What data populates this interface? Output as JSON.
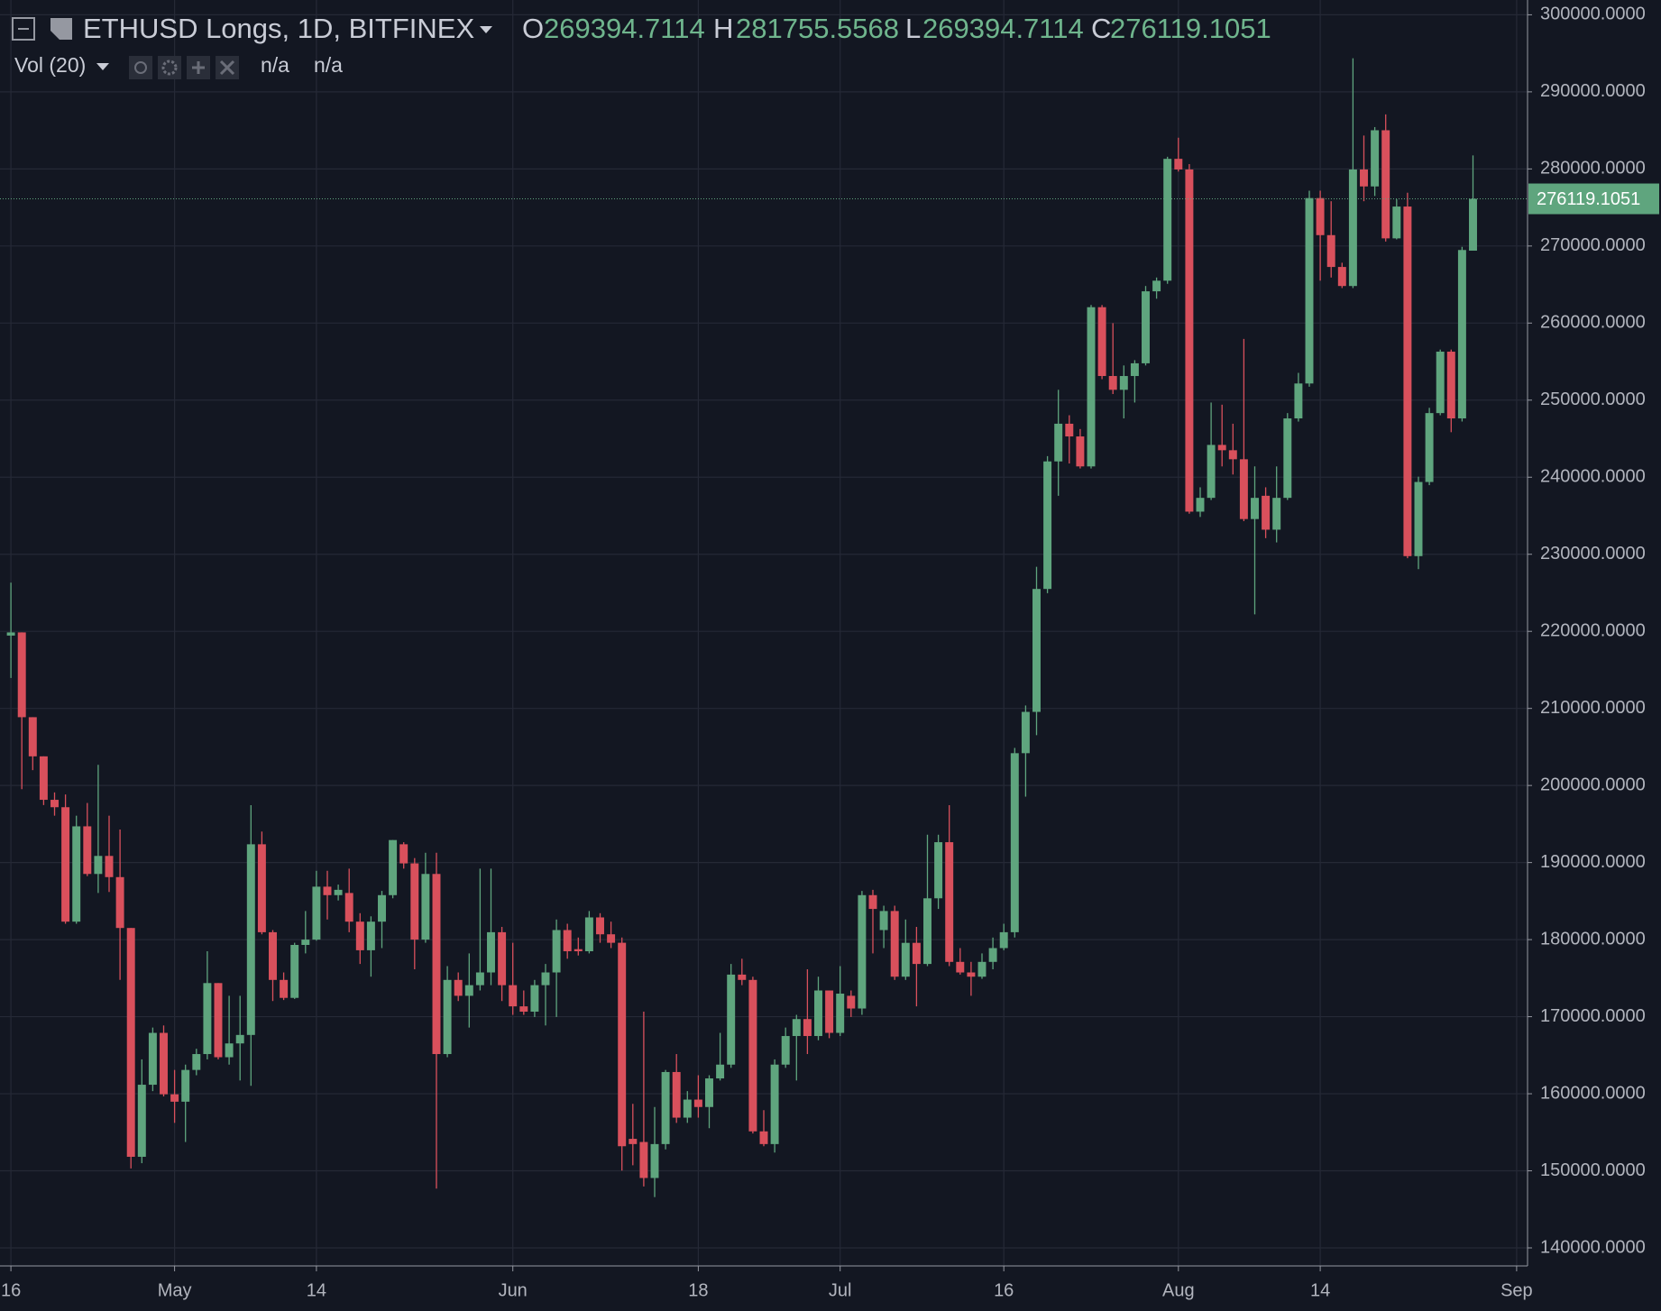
{
  "chart_data": {
    "type": "candlestick",
    "title": "ETHUSD Longs, 1D, BITFINEX",
    "ohlc_labels": [
      "O",
      "H",
      "L",
      "C"
    ],
    "indicator": {
      "label": "Vol (20)",
      "values": [
        "n/a",
        "n/a"
      ]
    },
    "up_color": "#5fa57e",
    "down_color": "#d9505c",
    "grid": true,
    "x": [
      "Apr 16",
      "Apr 17",
      "Apr 18",
      "Apr 19",
      "Apr 20",
      "Apr 21",
      "Apr 22",
      "Apr 23",
      "Apr 24",
      "Apr 25",
      "Apr 26",
      "Apr 27",
      "Apr 28",
      "Apr 29",
      "Apr 30",
      "May 1",
      "May 2",
      "May 3",
      "May 4",
      "May 5",
      "May 6",
      "May 7",
      "May 8",
      "May 9",
      "May 10",
      "May 11",
      "May 12",
      "May 13",
      "May 14",
      "May 15",
      "May 16",
      "May 17",
      "May 18",
      "May 19",
      "May 20",
      "May 21",
      "May 22",
      "May 23",
      "May 24",
      "May 25",
      "May 26",
      "May 27",
      "May 28",
      "May 29",
      "May 30",
      "May 31",
      "Jun 1",
      "Jun 2",
      "Jun 3",
      "Jun 4",
      "Jun 5",
      "Jun 6",
      "Jun 7",
      "Jun 8",
      "Jun 9",
      "Jun 10",
      "Jun 11",
      "Jun 12",
      "Jun 13",
      "Jun 14",
      "Jun 15",
      "Jun 16",
      "Jun 17",
      "Jun 18",
      "Jun 19",
      "Jun 20",
      "Jun 21",
      "Jun 22",
      "Jun 23",
      "Jun 24",
      "Jun 25",
      "Jun 26",
      "Jun 27",
      "Jun 28",
      "Jun 29",
      "Jun 30",
      "Jul 1",
      "Jul 2",
      "Jul 3",
      "Jul 4",
      "Jul 5",
      "Jul 6",
      "Jul 7",
      "Jul 8",
      "Jul 9",
      "Jul 10",
      "Jul 11",
      "Jul 12",
      "Jul 13",
      "Jul 14",
      "Jul 15",
      "Jul 16",
      "Jul 17",
      "Jul 18",
      "Jul 19",
      "Jul 20",
      "Jul 21",
      "Jul 22",
      "Jul 23",
      "Jul 24",
      "Jul 25",
      "Jul 26",
      "Jul 27",
      "Jul 28",
      "Jul 29",
      "Jul 30",
      "Jul 31",
      "Aug 1",
      "Aug 2",
      "Aug 3",
      "Aug 4",
      "Aug 5",
      "Aug 6",
      "Aug 7",
      "Aug 8",
      "Aug 9",
      "Aug 10",
      "Aug 11",
      "Aug 12",
      "Aug 13",
      "Aug 14",
      "Aug 15",
      "Aug 16",
      "Aug 17",
      "Aug 18",
      "Aug 19",
      "Aug 20",
      "Aug 21",
      "Aug 22",
      "Aug 23",
      "Aug 24",
      "Aug 25",
      "Aug 26",
      "Aug 27",
      "Aug 28"
    ],
    "open": [
      219450,
      219860,
      208860,
      203780,
      198140,
      197180,
      182330,
      194700,
      188520,
      190860,
      188110,
      181510,
      151820,
      161170,
      167900,
      159930,
      158970,
      163090,
      165150,
      174360,
      164740,
      166530,
      167630,
      192370,
      180960,
      174770,
      172440,
      179310,
      180000,
      186870,
      185770,
      186050,
      182330,
      178620,
      182330,
      185770,
      192370,
      189890,
      180000,
      188520,
      165150,
      174770,
      172710,
      174090,
      175740,
      180960,
      174090,
      171340,
      170650,
      174090,
      175740,
      181240,
      178760,
      178490,
      182880,
      180690,
      179590,
      154150,
      153740,
      149070,
      153470,
      162820,
      156900,
      159240,
      158280,
      161990,
      163780,
      175460,
      174770,
      155120,
      153470,
      163780,
      167490,
      169690,
      167490,
      173400,
      167900,
      172710,
      171060,
      185770,
      181240,
      183710,
      175190,
      179580,
      176840,
      185360,
      192640,
      177110,
      175740,
      175190,
      177110,
      178900,
      180960,
      204190,
      209550,
      225500,
      242050,
      246940,
      245290,
      241400,
      262060,
      253130,
      251340,
      253130,
      254780,
      264120,
      265500,
      281310,
      279930,
      235530,
      237320,
      244190,
      243500,
      242330,
      234570,
      237590,
      233190,
      237320,
      247630,
      252160,
      276220,
      271410,
      267280,
      264810,
      279930,
      277730,
      285020,
      270990,
      275120,
      229760,
      239380,
      248320,
      256290,
      247630,
      269394.7114
    ],
    "high": [
      226320,
      219860,
      208860,
      203780,
      199100,
      198830,
      196080,
      197730,
      202680,
      196080,
      194290,
      181510,
      164460,
      168590,
      168860,
      163090,
      163780,
      165840,
      178490,
      174360,
      172710,
      172710,
      197450,
      194020,
      181240,
      175740,
      179590,
      183710,
      188930,
      188930,
      187140,
      189210,
      183430,
      183020,
      186320,
      192920,
      192640,
      190580,
      191270,
      191270,
      176560,
      175740,
      178210,
      189210,
      189210,
      181650,
      179590,
      173400,
      174770,
      176840,
      182610,
      182060,
      180270,
      183710,
      183430,
      182330,
      180270,
      158690,
      170650,
      158280,
      163090,
      165150,
      160340,
      162400,
      162400,
      167900,
      176840,
      177520,
      175190,
      157870,
      164460,
      168590,
      170240,
      176150,
      175190,
      173400,
      176560,
      173400,
      186320,
      186460,
      184400,
      184400,
      182610,
      181650,
      193610,
      193610,
      197450,
      178900,
      177110,
      178210,
      180270,
      182060,
      204880,
      210380,
      228380,
      242740,
      251340,
      248040,
      246250,
      262340,
      262340,
      259990,
      254500,
      255190,
      264810,
      265910,
      281580,
      284050,
      280620,
      238690,
      249690,
      249410,
      246940,
      257940,
      241400,
      238690,
      241400,
      248320,
      253540,
      277180,
      277180,
      275810,
      267830,
      294360,
      284330,
      285430,
      287080,
      276080,
      276910,
      240070,
      249000,
      256560,
      256560,
      269900,
      281755.5568
    ],
    "low": [
      213950,
      199520,
      201990,
      197460,
      196080,
      182060,
      182060,
      188240,
      186050,
      186180,
      174770,
      150310,
      150990,
      160340,
      159650,
      156220,
      153740,
      162400,
      164460,
      164460,
      163780,
      161720,
      161030,
      180690,
      172030,
      172160,
      172300,
      178210,
      179860,
      182610,
      185080,
      180960,
      176840,
      175190,
      178900,
      185360,
      189210,
      176150,
      179590,
      147690,
      164740,
      172030,
      168590,
      173400,
      174090,
      172030,
      170240,
      170240,
      169960,
      168860,
      169960,
      177520,
      177940,
      178210,
      179590,
      178900,
      150030,
      150720,
      147970,
      146590,
      152780,
      156220,
      156220,
      156900,
      155530,
      161720,
      163360,
      174090,
      154840,
      153190,
      152370,
      163360,
      161720,
      165150,
      166940,
      167210,
      167490,
      169960,
      170240,
      178210,
      178900,
      174770,
      174770,
      171340,
      176560,
      183980,
      176560,
      175460,
      172710,
      174910,
      176150,
      178620,
      180270,
      198550,
      206530,
      224950,
      237590,
      241780,
      241130,
      241130,
      252720,
      250790,
      247630,
      249690,
      254500,
      263160,
      265090,
      279660,
      235260,
      234840,
      237040,
      241400,
      240350,
      234290,
      222200,
      232090,
      231540,
      237040,
      247220,
      251750,
      265500,
      265910,
      264540,
      264540,
      275810,
      276490,
      270580,
      270860,
      229480,
      228070,
      238970,
      248040,
      245840,
      247220,
      269394.7114
    ],
    "close": [
      219860,
      208860,
      203780,
      198140,
      197180,
      182330,
      194700,
      188520,
      190860,
      188110,
      181510,
      151820,
      161170,
      167900,
      159930,
      158970,
      163090,
      165150,
      174360,
      164740,
      166530,
      167630,
      192370,
      180960,
      174770,
      172440,
      179310,
      180000,
      186870,
      185770,
      186460,
      182330,
      178620,
      182330,
      185770,
      192920,
      189890,
      180000,
      188520,
      165150,
      174770,
      172710,
      174090,
      175740,
      180960,
      174090,
      171340,
      170650,
      174090,
      175740,
      181240,
      178490,
      178490,
      182880,
      180690,
      179590,
      153190,
      153470,
      149070,
      153470,
      162820,
      156900,
      159240,
      158280,
      161990,
      163780,
      175460,
      174770,
      155120,
      153470,
      163780,
      167490,
      169690,
      167490,
      173400,
      167900,
      172990,
      171060,
      185770,
      183980,
      183710,
      175190,
      179580,
      176840,
      185360,
      192640,
      177110,
      175740,
      175190,
      177110,
      178900,
      180960,
      204190,
      209550,
      225500,
      242050,
      246940,
      245290,
      241400,
      262060,
      253130,
      251340,
      253130,
      254780,
      264120,
      265500,
      281310,
      279930,
      235530,
      237320,
      244190,
      243500,
      242330,
      234570,
      237320,
      233190,
      237320,
      247630,
      252160,
      276220,
      271410,
      267280,
      264810,
      279930,
      277730,
      285020,
      270990,
      275120,
      229760,
      239380,
      248320,
      256290,
      247630,
      269480,
      276119.1051
    ],
    "xlim": [
      "Apr 15",
      "Sep 2"
    ],
    "xticks": [
      {
        "value": "Apr 16",
        "label": "16"
      },
      {
        "value": "May 1",
        "label": "May"
      },
      {
        "value": "May 14",
        "label": "14"
      },
      {
        "value": "Jun 1",
        "label": "Jun"
      },
      {
        "value": "Jun 18",
        "label": "18"
      },
      {
        "value": "Jul 1",
        "label": "Jul"
      },
      {
        "value": "Jul 16",
        "label": "16"
      },
      {
        "value": "Aug 1",
        "label": "Aug"
      },
      {
        "value": "Aug 14",
        "label": "14"
      },
      {
        "value": "Sep 1",
        "label": "Sep"
      }
    ],
    "ylim": [
      137660,
      301920
    ],
    "yticks": [
      {
        "value": 140000,
        "label": "140000.0000"
      },
      {
        "value": 150000,
        "label": "150000.0000"
      },
      {
        "value": 160000,
        "label": "160000.0000"
      },
      {
        "value": 170000,
        "label": "170000.0000"
      },
      {
        "value": 180000,
        "label": "180000.0000"
      },
      {
        "value": 190000,
        "label": "190000.0000"
      },
      {
        "value": 200000,
        "label": "200000.0000"
      },
      {
        "value": 210000,
        "label": "210000.0000"
      },
      {
        "value": 220000,
        "label": "220000.0000"
      },
      {
        "value": 230000,
        "label": "230000.0000"
      },
      {
        "value": 240000,
        "label": "240000.0000"
      },
      {
        "value": 250000,
        "label": "250000.0000"
      },
      {
        "value": 260000,
        "label": "260000.0000"
      },
      {
        "value": 270000,
        "label": "270000.0000"
      },
      {
        "value": 280000,
        "label": "280000.0000"
      },
      {
        "value": 290000,
        "label": "290000.0000"
      },
      {
        "value": 300000,
        "label": "300000.0000"
      }
    ]
  }
}
